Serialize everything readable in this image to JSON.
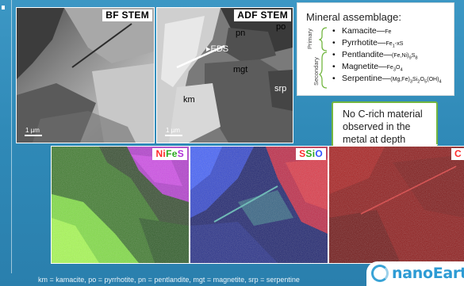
{
  "panels": {
    "bf": {
      "label": "BF STEM",
      "scale": "1 µm"
    },
    "adf": {
      "label": "ADF STEM",
      "scale": "1 µm",
      "labels": {
        "pn": "pn",
        "po": "po",
        "eds": "EDS",
        "mgt": "mgt",
        "km": "km",
        "srp": "srp"
      }
    },
    "nifes": {
      "label_parts": [
        "Ni",
        "Fe",
        "S"
      ],
      "colors": [
        "#ff2a2a",
        "#44cc33",
        "#c040e0"
      ]
    },
    "ssio": {
      "label_parts": [
        "S",
        "Si",
        "O"
      ],
      "colors": [
        "#ff2a2a",
        "#44cc33",
        "#3355ff"
      ]
    },
    "c": {
      "label": "C"
    }
  },
  "mineral_box": {
    "title": "Mineral assemblage:",
    "primary_label": "Primary",
    "secondary_label": "Secondary",
    "items": [
      {
        "name": "Kamacite",
        "formula": "Fe"
      },
      {
        "name": "Pyrrhotite",
        "formula": "Fe1-xS"
      },
      {
        "name": "Pentlandite",
        "formula": "(Fe,Ni)9S8"
      },
      {
        "name": "Magnetite",
        "formula": "Fe3O4"
      },
      {
        "name": "Serpentine",
        "formula": "(Mg,Fe)3Si2O5(OH)4"
      }
    ]
  },
  "note": {
    "text": "No C-rich material observed in the metal at depth"
  },
  "footer": {
    "text": "km = kamacite, po = pyrrhotite, pn = pentlandite, mgt = magnetite, srp = serpentine"
  },
  "logo": {
    "text": "nanoEarth"
  }
}
